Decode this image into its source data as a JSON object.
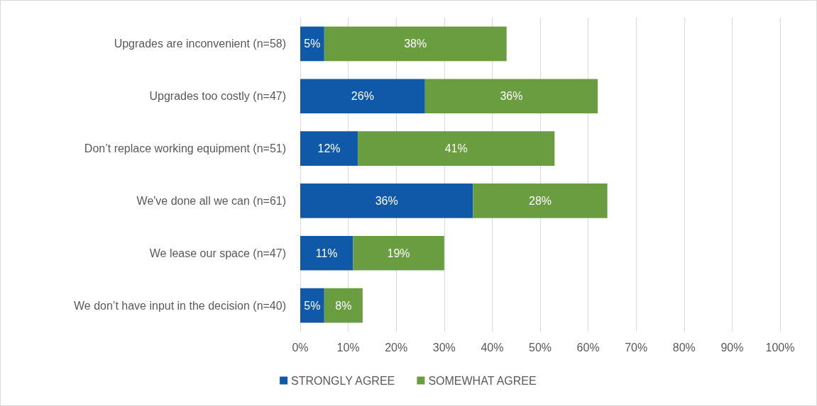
{
  "chart_data": {
    "type": "bar",
    "orientation": "horizontal",
    "stacked": true,
    "categories": [
      "Upgrades are inconvenient (n=58)",
      "Upgrades too costly (n=47)",
      "Don’t replace working equipment (n=51)",
      "We've done all we can (n=61)",
      "We lease our space (n=47)",
      "We don’t have input in the decision (n=40)"
    ],
    "series": [
      {
        "name": "STRONGLY AGREE",
        "color": "#0f59a8",
        "values": [
          5,
          26,
          12,
          36,
          11,
          5
        ],
        "value_labels": [
          "5%",
          "26%",
          "12%",
          "36%",
          "11%",
          "5%"
        ]
      },
      {
        "name": "SOMEWHAT AGREE",
        "color": "#6a9d3f",
        "values": [
          38,
          36,
          41,
          28,
          19,
          8
        ],
        "value_labels": [
          "38%",
          "36%",
          "41%",
          "28%",
          "19%",
          "8%"
        ]
      }
    ],
    "xlim": [
      0,
      100
    ],
    "xticks": [
      {
        "value": 0,
        "label": "0%"
      },
      {
        "value": 10,
        "label": "10%"
      },
      {
        "value": 20,
        "label": "20%"
      },
      {
        "value": 30,
        "label": "30%"
      },
      {
        "value": 40,
        "label": "40%"
      },
      {
        "value": 50,
        "label": "50%"
      },
      {
        "value": 60,
        "label": "60%"
      },
      {
        "value": 70,
        "label": "70%"
      },
      {
        "value": 80,
        "label": "80%"
      },
      {
        "value": 90,
        "label": "90%"
      },
      {
        "value": 100,
        "label": "100%"
      }
    ],
    "grid": "x",
    "legend": "bottom"
  }
}
